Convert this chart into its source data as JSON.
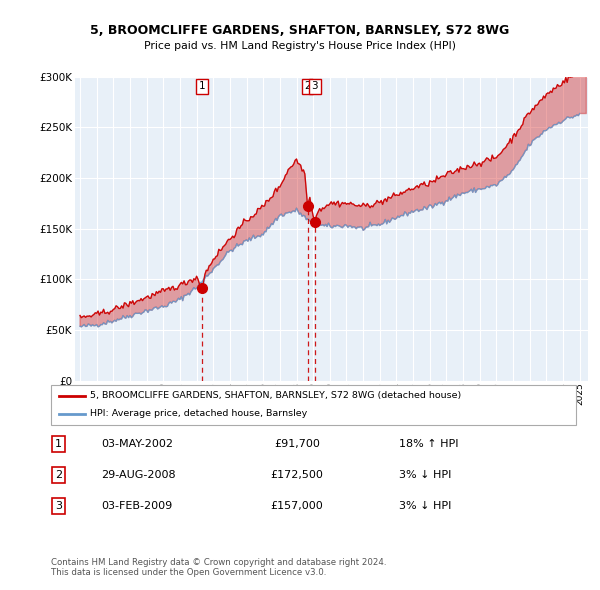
{
  "title": "5, BROOMCLIFFE GARDENS, SHAFTON, BARNSLEY, S72 8WG",
  "subtitle": "Price paid vs. HM Land Registry's House Price Index (HPI)",
  "legend_label_red": "5, BROOMCLIFFE GARDENS, SHAFTON, BARNSLEY, S72 8WG (detached house)",
  "legend_label_blue": "HPI: Average price, detached house, Barnsley",
  "copyright": "Contains HM Land Registry data © Crown copyright and database right 2024.\nThis data is licensed under the Open Government Licence v3.0.",
  "sales": [
    {
      "num": 1,
      "date": "03-MAY-2002",
      "price": 91700,
      "hpi_pct": "18%",
      "direction": "↑"
    },
    {
      "num": 2,
      "date": "29-AUG-2008",
      "price": 172500,
      "hpi_pct": "3%",
      "direction": "↓"
    },
    {
      "num": 3,
      "date": "03-FEB-2009",
      "price": 157000,
      "hpi_pct": "3%",
      "direction": "↓"
    }
  ],
  "sale_years": [
    2002.34,
    2008.66,
    2009.09
  ],
  "sale_prices": [
    91700,
    172500,
    157000
  ],
  "ylim": [
    0,
    300000
  ],
  "yticks": [
    0,
    50000,
    100000,
    150000,
    200000,
    250000,
    300000
  ],
  "xlim_start": 1994.7,
  "xlim_end": 2025.5,
  "red_color": "#cc0000",
  "blue_color": "#6699cc",
  "fill_blue": "#ddeeff",
  "background_color": "#e8f0f8",
  "grid_color": "#ffffff",
  "num_box_color": "#cc0000"
}
